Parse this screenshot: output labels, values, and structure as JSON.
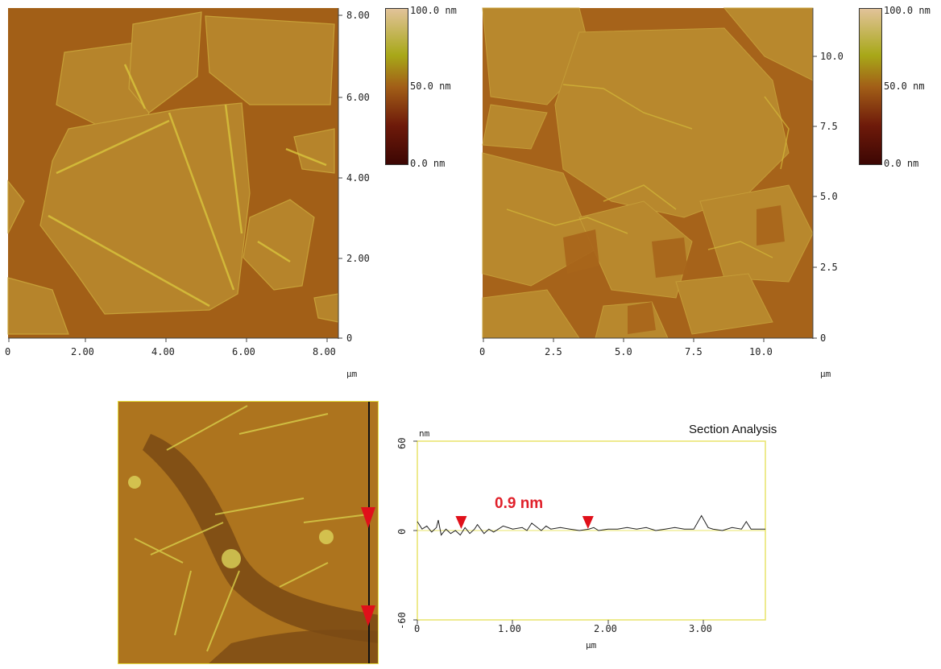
{
  "panel_left": {
    "x_ticks": [
      "0",
      "2.00",
      "4.00",
      "6.00",
      "8.00"
    ],
    "y_ticks": [
      "0",
      "2.00",
      "4.00",
      "6.00",
      "8.00"
    ],
    "unit": "µm",
    "colorbar": {
      "max": "100.0 nm",
      "mid": "50.0 nm",
      "min": "0.0 nm"
    }
  },
  "panel_right": {
    "x_ticks": [
      "0",
      "2.5",
      "5.0",
      "7.5",
      "10.0"
    ],
    "y_ticks": [
      "0",
      "2.5",
      "5.0",
      "7.5",
      "10.0"
    ],
    "unit": "µm",
    "colorbar": {
      "max": "100.0 nm",
      "mid": "50.0 nm",
      "min": "0.0 nm"
    }
  },
  "section": {
    "title": "Section Analysis",
    "y_unit": "nm",
    "x_unit": "µm",
    "y_ticks": [
      "60",
      "0",
      "-60"
    ],
    "x_ticks": [
      "0",
      "1.00",
      "2.00",
      "3.00"
    ],
    "annotation": "0.9 nm"
  },
  "chart_data": {
    "type": "line",
    "title": "Section Analysis",
    "xlabel": "µm",
    "ylabel": "nm",
    "xlim": [
      0,
      3.65
    ],
    "ylim": [
      -60,
      60
    ],
    "series": [
      {
        "x": [
          0,
          0.05,
          0.1,
          0.15,
          0.2,
          0.22,
          0.25,
          0.3,
          0.35,
          0.4,
          0.45,
          0.5,
          0.55,
          0.6,
          0.63,
          0.7,
          0.75,
          0.8,
          0.9,
          1.0,
          1.1,
          1.15,
          1.2,
          1.3,
          1.35,
          1.4,
          1.5,
          1.6,
          1.7,
          1.8,
          1.85,
          1.9,
          2.0,
          2.1,
          2.2,
          2.3,
          2.4,
          2.5,
          2.6,
          2.7,
          2.8,
          2.9,
          2.98,
          3.05,
          3.1,
          3.2,
          3.3,
          3.4,
          3.45,
          3.5,
          3.6,
          3.65
        ],
        "y": [
          6,
          1,
          3,
          -1,
          2,
          7,
          -3,
          1,
          -2,
          0,
          -3,
          2,
          -2,
          1,
          4,
          -2,
          1,
          -1,
          3,
          1,
          2,
          0,
          5,
          0,
          3,
          1,
          2,
          1,
          0,
          1,
          2,
          0,
          1,
          1,
          2,
          1,
          2,
          0,
          1,
          2,
          1,
          1,
          10,
          2,
          1,
          0,
          2,
          1,
          6,
          1,
          1,
          1
        ]
      }
    ],
    "markers_x": [
      0.46,
      1.79
    ]
  },
  "colors": {
    "afm_base": "#a25f17",
    "afm_flake": "#b7882a",
    "afm_edge": "#d2c038",
    "marker": "#e0101a",
    "plot_frame": "#ecec70",
    "annotation": "#e0202a"
  }
}
